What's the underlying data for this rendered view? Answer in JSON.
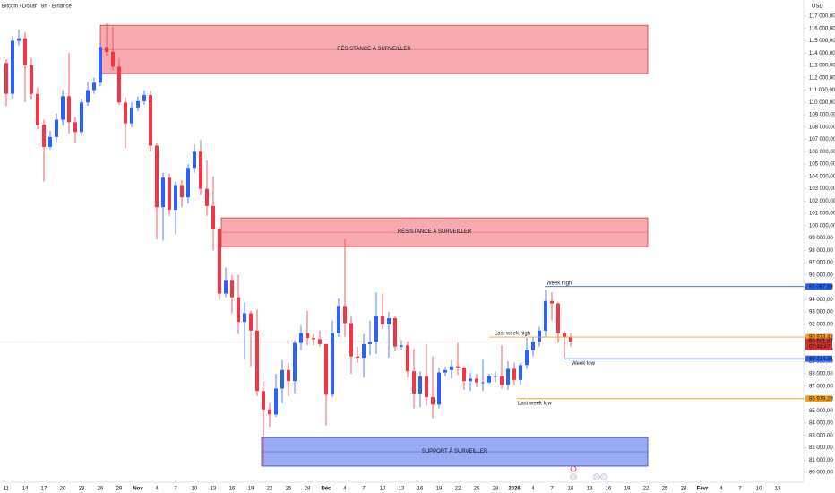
{
  "chart_data": {
    "type": "candlestick",
    "title": "Bitcoin / Dollar · 8h · Binance",
    "currency": "USD",
    "up_color": "#2962ff",
    "down_color": "#f23645",
    "categories": [
      "11",
      "14",
      "17",
      "20",
      "23",
      "26",
      "29",
      "Nov",
      "4",
      "7",
      "10",
      "13",
      "16",
      "19",
      "22",
      "25",
      "28",
      "Déc",
      "4",
      "7",
      "10",
      "13",
      "16",
      "19",
      "22",
      "25",
      "28",
      "2026",
      "4",
      "7",
      "10",
      "13",
      "16",
      "19",
      "22",
      "25",
      "28",
      "Févr",
      "4",
      "7",
      "10",
      "13"
    ],
    "open": [
      113200,
      110700,
      115000,
      115200,
      113000,
      110700,
      108200,
      106400,
      107200,
      108600,
      110500,
      108400,
      107600,
      110000,
      111000,
      111600,
      114500,
      114100,
      112900,
      110000,
      108300,
      109600,
      110100,
      110600,
      106500,
      101500,
      103900,
      101300,
      103300,
      102300,
      104700,
      106000,
      103000,
      101600,
      99700,
      94500,
      95600,
      94200,
      92200,
      92900,
      91500,
      86600,
      85100,
      84700,
      86800,
      88300,
      87400,
      90500,
      91300,
      90900,
      90800,
      90400,
      86300,
      91300,
      93500,
      92100,
      89400,
      89300,
      90400,
      90600,
      92700,
      92000,
      92500,
      90200,
      90300,
      88200,
      86400,
      87800,
      86100,
      85500,
      88100,
      88300,
      88600,
      88500,
      87400,
      87600,
      87300,
      87300,
      87800,
      87800,
      87100,
      88400,
      87500,
      88700,
      89900,
      90600,
      91500,
      93900,
      93700,
      91300,
      91000
    ],
    "high": [
      113500,
      115400,
      115900,
      115700,
      113600,
      111200,
      108600,
      107700,
      109100,
      111000,
      114000,
      108800,
      110300,
      111700,
      112000,
      114900,
      116400,
      116100,
      113600,
      110400,
      110000,
      110500,
      111000,
      110900,
      106700,
      104300,
      104200,
      103600,
      103700,
      105000,
      106600,
      107000,
      105300,
      104000,
      99900,
      96600,
      96000,
      96000,
      93800,
      93100,
      93200,
      87400,
      85600,
      88000,
      89100,
      88900,
      90700,
      91900,
      93100,
      91200,
      91500,
      90400,
      92300,
      94100,
      98900,
      92700,
      90200,
      91200,
      92300,
      94600,
      94500,
      93000,
      92700,
      90700,
      90600,
      90000,
      88200,
      90400,
      89400,
      88500,
      88600,
      89100,
      90500,
      88600,
      88100,
      88000,
      89200,
      88000,
      88200,
      90300,
      89000,
      88900,
      88900,
      90900,
      91000,
      91800,
      94800,
      94600,
      93800,
      91500,
      91300
    ],
    "low": [
      109700,
      110300,
      114600,
      110000,
      110200,
      107800,
      103600,
      106200,
      106800,
      108100,
      107500,
      106700,
      107300,
      109700,
      110700,
      111300,
      113800,
      112600,
      109800,
      106300,
      108000,
      109300,
      109800,
      106000,
      98900,
      98800,
      100800,
      99300,
      101500,
      101800,
      104300,
      102500,
      100800,
      98000,
      94000,
      94200,
      92900,
      91200,
      89200,
      88600,
      86200,
      80600,
      83700,
      84500,
      85600,
      86200,
      86400,
      89900,
      90300,
      90300,
      90200,
      83800,
      86100,
      91000,
      91000,
      88000,
      88900,
      87700,
      89500,
      89600,
      91600,
      89300,
      89800,
      89900,
      87700,
      85200,
      85300,
      85400,
      84400,
      85200,
      87800,
      87600,
      87900,
      86700,
      86600,
      86900,
      86600,
      87200,
      87300,
      86800,
      86700,
      87100,
      87100,
      88400,
      89400,
      90200,
      91000,
      92300,
      90500,
      89300,
      90200
    ],
    "close": [
      110700,
      115000,
      115200,
      113000,
      110700,
      108200,
      106400,
      107200,
      108600,
      110500,
      108400,
      107600,
      110000,
      111000,
      111600,
      114500,
      114100,
      112900,
      110000,
      108300,
      109600,
      110100,
      110600,
      106500,
      101500,
      103900,
      101300,
      103300,
      102300,
      104700,
      106000,
      103000,
      101600,
      99700,
      94500,
      95600,
      94200,
      92200,
      92900,
      91500,
      86600,
      85100,
      84700,
      86800,
      88300,
      87400,
      90500,
      91300,
      90900,
      90800,
      90400,
      86300,
      91300,
      93500,
      92100,
      89400,
      89300,
      90400,
      90600,
      92700,
      92000,
      92500,
      90200,
      90300,
      88200,
      86400,
      87800,
      86100,
      85500,
      88100,
      88300,
      88600,
      88500,
      87400,
      87600,
      87300,
      87300,
      87800,
      87800,
      87100,
      88400,
      87500,
      88700,
      89900,
      90600,
      91500,
      93900,
      93700,
      91300,
      91000,
      90600
    ],
    "ylim": [
      80000,
      117000
    ],
    "yticks": [
      {
        "value": 80000,
        "label": "80 000,00"
      },
      {
        "value": 81000,
        "label": "81 000,00"
      },
      {
        "value": 82000,
        "label": "82 000,00"
      },
      {
        "value": 83000,
        "label": "83 000,00"
      },
      {
        "value": 84000,
        "label": "84 000,00"
      },
      {
        "value": 85000,
        "label": "85 000,00"
      },
      {
        "value": 86000,
        "label": "86 000,00"
      },
      {
        "value": 87000,
        "label": "87 000,00"
      },
      {
        "value": 88000,
        "label": "88 000,00"
      },
      {
        "value": 89000,
        "label": "89 000,00"
      },
      {
        "value": 90000,
        "label": "90 000,00"
      },
      {
        "value": 91000,
        "label": "91 000,00"
      },
      {
        "value": 92000,
        "label": "92 000,00"
      },
      {
        "value": 93000,
        "label": "93 000,00"
      },
      {
        "value": 94000,
        "label": "94 000,00"
      },
      {
        "value": 95000,
        "label": "95 000,00"
      },
      {
        "value": 96000,
        "label": "96 000,00"
      },
      {
        "value": 97000,
        "label": "97 000,00"
      },
      {
        "value": 98000,
        "label": "98 000,00"
      },
      {
        "value": 99000,
        "label": "99 000,00"
      },
      {
        "value": 100000,
        "label": "100 000,00"
      },
      {
        "value": 101000,
        "label": "101 000,00"
      },
      {
        "value": 102000,
        "label": "102 000,00"
      },
      {
        "value": 103000,
        "label": "103 000,00"
      },
      {
        "value": 104000,
        "label": "104 000,00"
      },
      {
        "value": 105000,
        "label": "105 000,00"
      },
      {
        "value": 106000,
        "label": "106 000,00"
      },
      {
        "value": 107000,
        "label": "107 000,00"
      },
      {
        "value": 108000,
        "label": "108 000,00"
      },
      {
        "value": 109000,
        "label": "109 000,00"
      },
      {
        "value": 110000,
        "label": "110 000,00"
      },
      {
        "value": 111000,
        "label": "111 000,00"
      },
      {
        "value": 112000,
        "label": "112 000,00"
      },
      {
        "value": 113000,
        "label": "113 000,00"
      },
      {
        "value": 114000,
        "label": "114 000,00"
      },
      {
        "value": 115000,
        "label": "115 000,00"
      },
      {
        "value": 116000,
        "label": "116 000,00"
      },
      {
        "value": 117000,
        "label": "117 000,00"
      }
    ],
    "zones": [
      {
        "label": "RÉSISTANCE À SURVEILLER",
        "top": 116260,
        "bottom": 112340,
        "color": "#f7a1a8",
        "border": "#d23a3a"
      },
      {
        "label": "RÉSISTANCE À SURVEILLER",
        "top": 100640,
        "bottom": 98310,
        "color": "#f7a1a8",
        "border": "#d23a3a"
      },
      {
        "label": "SUPPORT À SURVEILLER",
        "top": 82830,
        "bottom": 80510,
        "color": "#8fa2f5",
        "border": "#2a3fc0"
      }
    ],
    "levels": [
      {
        "label": "Week high",
        "value": 95067.88,
        "value_label": "95 067,88",
        "color": "#2962ff"
      },
      {
        "label": "Week low",
        "value": 89214.35,
        "value_label": "89 214,35",
        "color": "#2962ff"
      },
      {
        "label": "Last week high",
        "value": 90973.41,
        "value_label": "90 973,41",
        "color": "#f7a21b"
      },
      {
        "label": "Last week low",
        "value": 85979.26,
        "value_label": "85 979,26",
        "color": "#f7a21b"
      }
    ],
    "current_price": {
      "value": 90601.87,
      "value_label": "90 601,87",
      "countdown": "07:44:47",
      "color": "#d32f2f"
    }
  }
}
